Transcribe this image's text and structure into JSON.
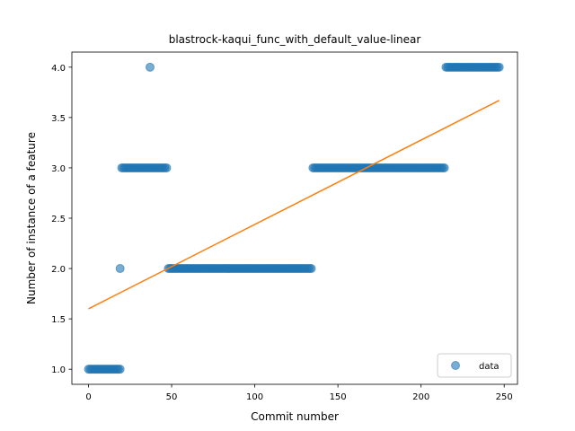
{
  "chart_data": {
    "type": "scatter",
    "title": "blastrock-kaqui_func_with_default_value-linear",
    "xlabel": "Commit number",
    "ylabel": "Number of instance of a feature",
    "xlim": [
      -10,
      258
    ],
    "ylim": [
      0.85,
      4.15
    ],
    "xticks": [
      0,
      50,
      100,
      150,
      200,
      250
    ],
    "yticks": [
      1.0,
      1.5,
      2.0,
      2.5,
      3.0,
      3.5,
      4.0
    ],
    "xtick_labels": [
      "0",
      "50",
      "100",
      "150",
      "200",
      "250"
    ],
    "ytick_labels": [
      "1.0",
      "1.5",
      "2.0",
      "2.5",
      "3.0",
      "3.5",
      "4.0"
    ],
    "grid": false,
    "legend_position": "lower right",
    "series": [
      {
        "name": "data",
        "kind": "scatter",
        "color": "#1f77b4",
        "runs": [
          {
            "x_start": 0,
            "x_end": 19,
            "y": 1
          },
          {
            "x_start": 19,
            "x_end": 19,
            "y": 2
          },
          {
            "x_start": 20,
            "x_end": 47,
            "y": 3
          },
          {
            "x_start": 37,
            "x_end": 37,
            "y": 4
          },
          {
            "x_start": 48,
            "x_end": 134,
            "y": 2
          },
          {
            "x_start": 135,
            "x_end": 214,
            "y": 3
          },
          {
            "x_start": 215,
            "x_end": 247,
            "y": 4
          }
        ]
      },
      {
        "kind": "line",
        "color": "#ff7f0e",
        "x": [
          0,
          247
        ],
        "y": [
          1.6,
          3.67
        ]
      }
    ]
  }
}
